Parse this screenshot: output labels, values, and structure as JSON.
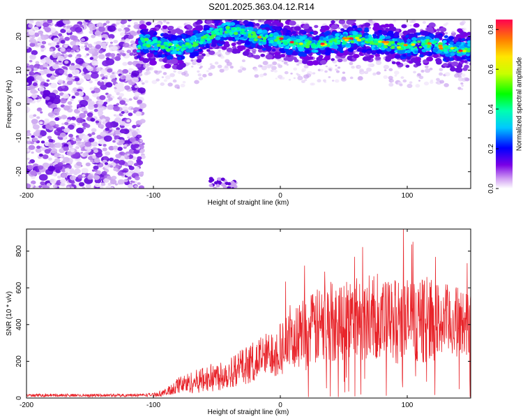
{
  "title": "S201.2025.363.04.12.R14",
  "colors": {
    "snr_line": "#e8242a",
    "frame": "#000000"
  },
  "chart_data": [
    {
      "type": "heatmap",
      "name": "spectrogram",
      "xlabel": "Height of straight line (km)",
      "ylabel": "Frequency (Hz)",
      "xlim": [
        -200,
        150
      ],
      "ylim": [
        -25,
        25
      ],
      "x_ticks": [
        -200,
        -100,
        0,
        100
      ],
      "x_tick_labels": [
        "-200",
        "-100",
        "0",
        "100"
      ],
      "y_ticks": [
        -20,
        -10,
        0,
        10,
        20
      ],
      "y_tick_labels": [
        "-20",
        "-10",
        "0",
        "10",
        "20"
      ],
      "colorbar": {
        "label": "Normalized spectral amplitude",
        "range": [
          0,
          0.85
        ],
        "ticks": [
          0,
          0.2,
          0.4,
          0.6,
          0.8
        ],
        "tick_labels": [
          "0.0",
          "0.2",
          "0.4",
          "0.6",
          "0.8"
        ],
        "colormap": "rainbow"
      },
      "ridge": {
        "description_free": true,
        "points": [
          [
            -110,
            18.5
          ],
          [
            -100,
            18
          ],
          [
            -90,
            17
          ],
          [
            -80,
            16.5
          ],
          [
            -70,
            17.5
          ],
          [
            -60,
            19.5
          ],
          [
            -50,
            21
          ],
          [
            -40,
            22
          ],
          [
            -30,
            21
          ],
          [
            -20,
            20
          ],
          [
            -10,
            19.5
          ],
          [
            0,
            19
          ],
          [
            10,
            18
          ],
          [
            20,
            18
          ],
          [
            30,
            17.5
          ],
          [
            40,
            18.5
          ],
          [
            50,
            19
          ],
          [
            60,
            19.5
          ],
          [
            70,
            18.5
          ],
          [
            80,
            18
          ],
          [
            90,
            17.5
          ],
          [
            100,
            17
          ],
          [
            110,
            17.5
          ],
          [
            120,
            18
          ],
          [
            130,
            16.5
          ],
          [
            140,
            16
          ],
          [
            150,
            16.5
          ]
        ]
      }
    },
    {
      "type": "line",
      "name": "snr",
      "xlabel": "Height of straight line (km)",
      "ylabel": "SNR (10 * v/v)",
      "xlim": [
        -200,
        150
      ],
      "ylim": [
        0,
        920
      ],
      "x_ticks": [
        -200,
        -100,
        0,
        100
      ],
      "x_tick_labels": [
        "-200",
        "-100",
        "0",
        "100"
      ],
      "y_ticks": [
        0,
        200,
        400,
        600,
        800
      ],
      "y_tick_labels": [
        "0",
        "200",
        "400",
        "600",
        "800"
      ],
      "envelope": {
        "x": [
          -200,
          -120,
          -100,
          -90,
          -80,
          -60,
          -40,
          -20,
          0,
          20,
          40,
          60,
          80,
          100,
          120,
          150
        ],
        "mean": [
          15,
          15,
          18,
          30,
          70,
          100,
          140,
          200,
          270,
          350,
          420,
          440,
          420,
          420,
          420,
          410
        ],
        "spread": [
          8,
          8,
          10,
          20,
          50,
          70,
          90,
          110,
          150,
          200,
          230,
          230,
          220,
          240,
          220,
          180
        ]
      }
    }
  ]
}
